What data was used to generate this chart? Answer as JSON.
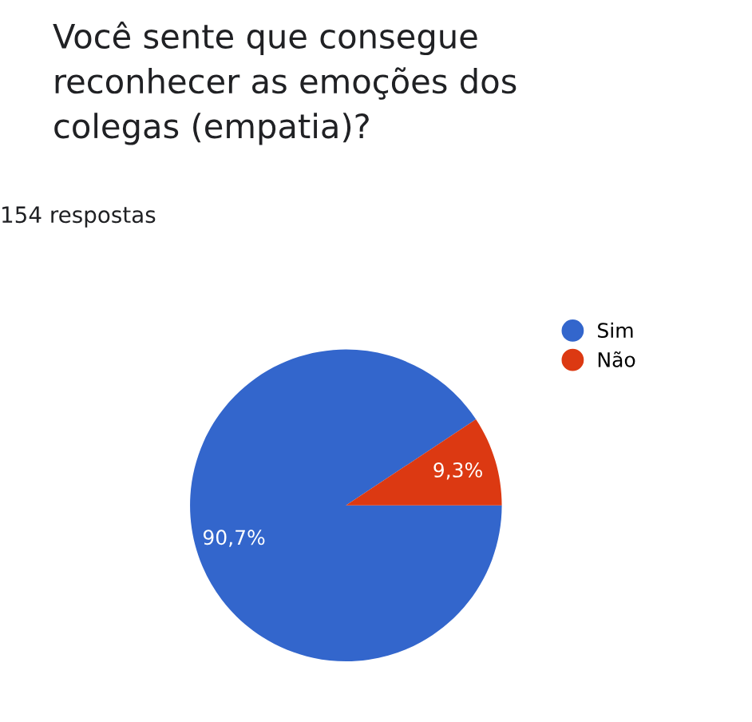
{
  "chart_data": {
    "type": "pie",
    "title": "Você sente que consegue\nreconhecer as emoções dos\ncolegas (empatia)?",
    "subtitle": "154 respostas",
    "categories": [
      "Sim",
      "Não"
    ],
    "values": [
      90.7,
      9.3
    ],
    "value_labels": [
      "90,7%",
      "9,3%"
    ],
    "colors": [
      "#3366cc",
      "#dc3912"
    ],
    "legend": "top right"
  }
}
